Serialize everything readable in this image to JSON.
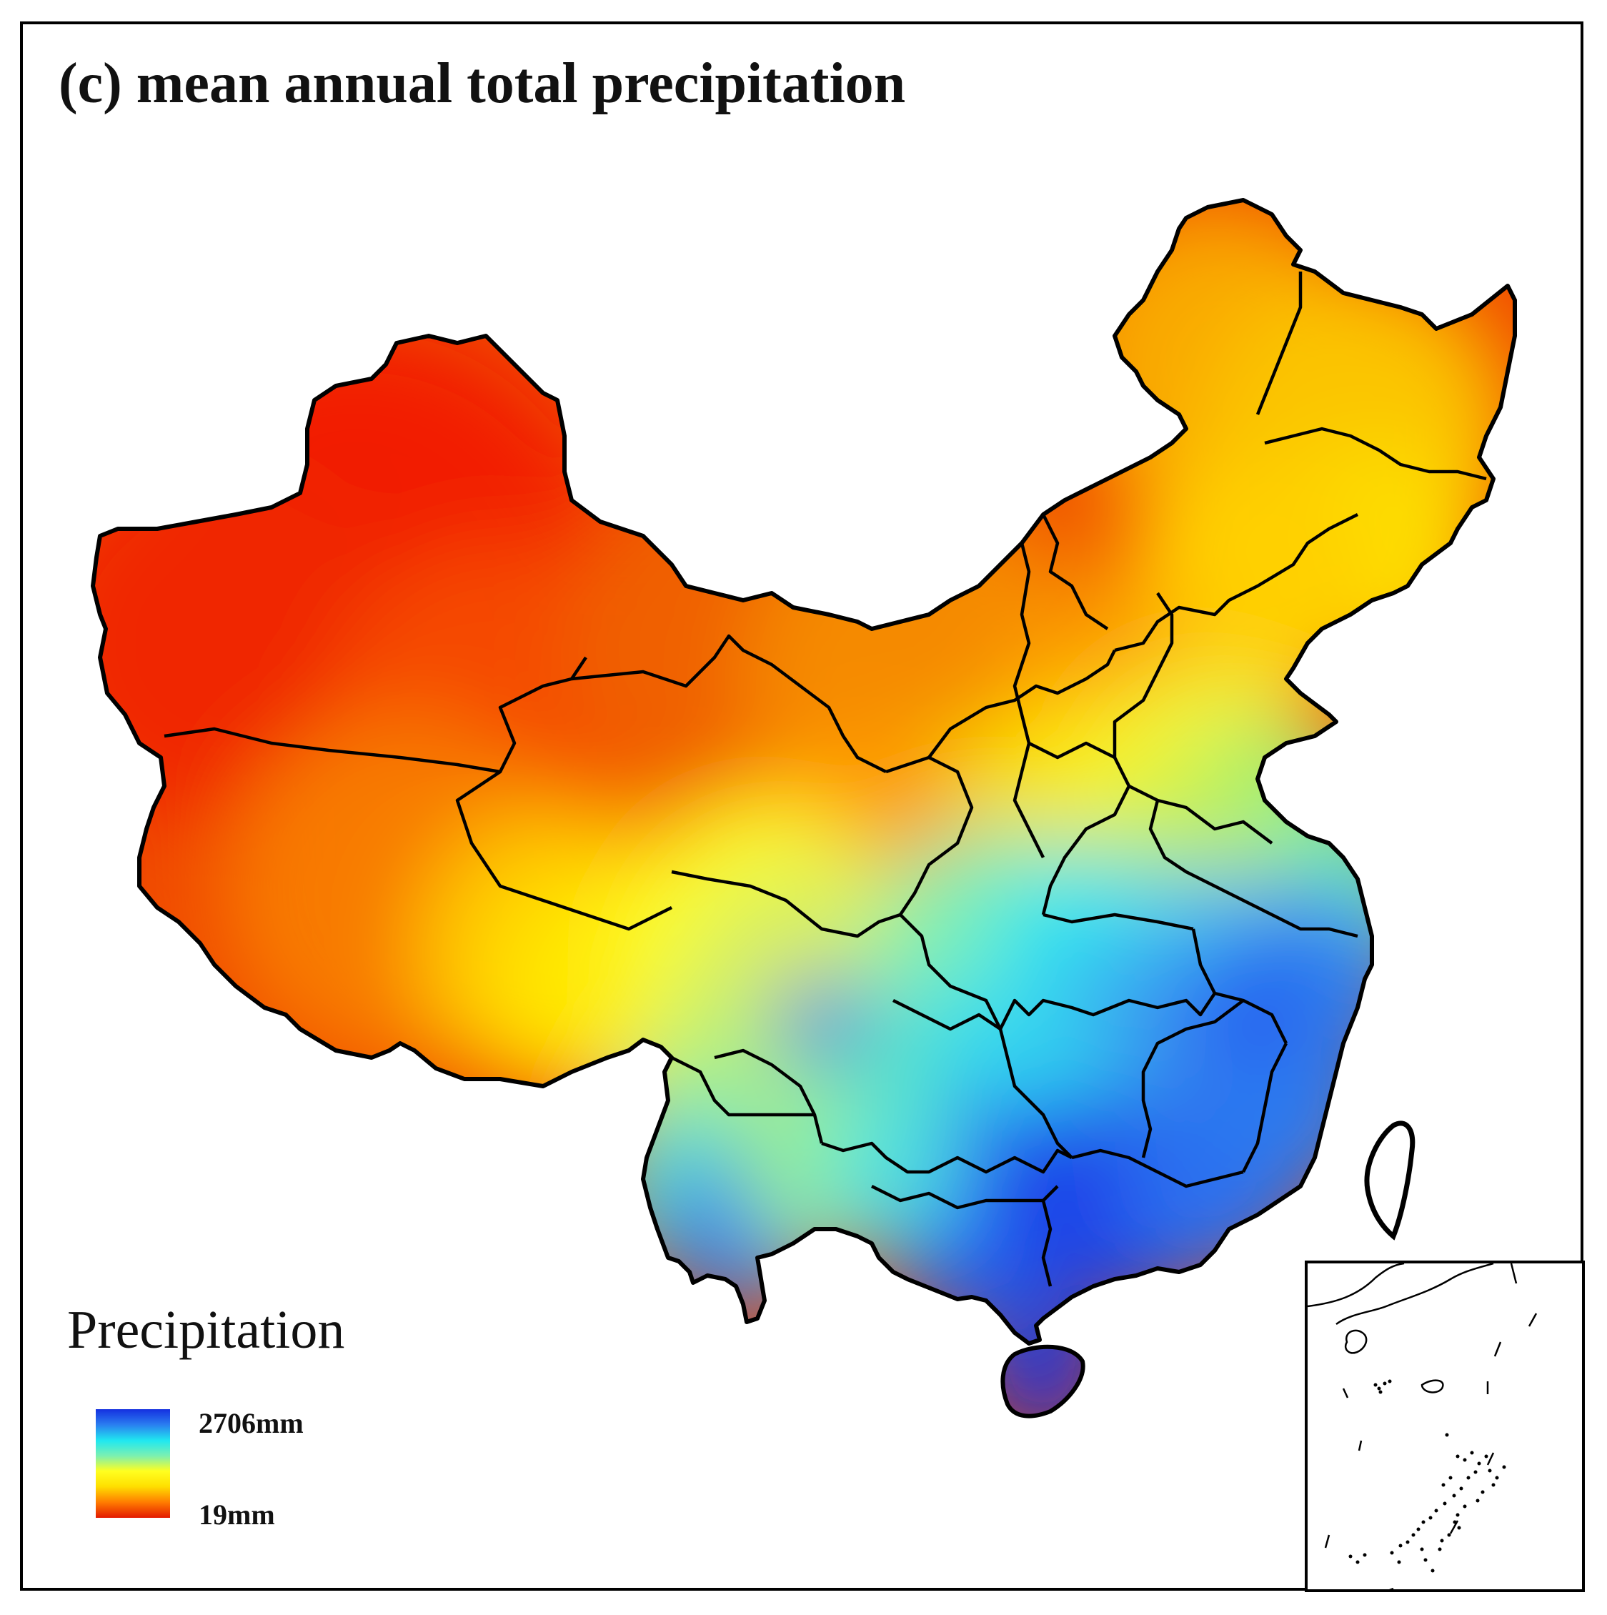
{
  "figure": {
    "title": "(c) mean annual total precipitation"
  },
  "legend": {
    "title": "Precipitation",
    "max_label": "2706mm",
    "min_label": "19mm",
    "max_value_mm": 2706,
    "min_value_mm": 19,
    "gradient_colors": [
      "#e31a00",
      "#ff7a00",
      "#ffe000",
      "#ffff20",
      "#7cf0b0",
      "#20e8f0",
      "#2a7cf0",
      "#1430e0"
    ]
  },
  "map": {
    "region": "China",
    "color_scale_low": "#ff1a00",
    "color_scale_high": "#1430e0",
    "inset": "South China Sea islands"
  }
}
